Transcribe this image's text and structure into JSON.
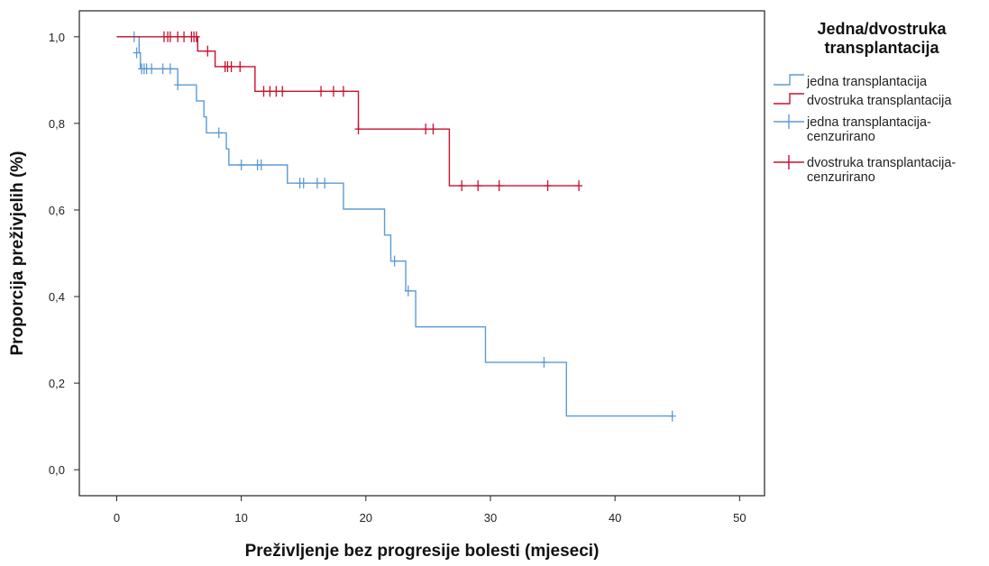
{
  "chart_data": {
    "type": "line",
    "subtype": "kaplan-meier-step",
    "title": "",
    "xlabel": "Preživljenje bez progresije bolesti (mjeseci)",
    "ylabel": "Proporcija preživjelih (%)",
    "xlim": [
      -3,
      52
    ],
    "ylim": [
      -0.06,
      1.06
    ],
    "xticks": [
      0,
      10,
      20,
      30,
      40,
      50
    ],
    "xtick_labels": [
      "0",
      "10",
      "20",
      "30",
      "40",
      "50"
    ],
    "yticks": [
      0.0,
      0.2,
      0.4,
      0.6,
      0.8,
      1.0
    ],
    "ytick_labels": [
      "0,0",
      "0,2",
      "0,4",
      "0,6",
      "0,8",
      "1,0"
    ],
    "grid": false,
    "legend": {
      "title_lines": [
        "Jedna/dvostruka",
        "transplantacija"
      ],
      "placement": "right",
      "entries": [
        {
          "lines": [
            "jedna transplantacija"
          ],
          "kind": "step",
          "color": "#5B9BD5"
        },
        {
          "lines": [
            "dvostruka transplantacija"
          ],
          "kind": "step",
          "color": "#C8102E"
        },
        {
          "lines": [
            "jedna transplantacija-",
            "cenzurirano"
          ],
          "kind": "censor",
          "color": "#5B9BD5"
        },
        {
          "lines": [
            "dvostruka transplantacija-",
            "cenzurirano"
          ],
          "kind": "censor",
          "color": "#C8102E"
        }
      ]
    },
    "series": [
      {
        "name": "jedna transplantacija",
        "color": "#5B9BD5",
        "steps": [
          [
            0,
            1.0
          ],
          [
            1.8,
            0.963
          ],
          [
            1.9,
            0.926
          ],
          [
            4.9,
            0.889
          ],
          [
            6.4,
            0.852
          ],
          [
            7.0,
            0.815
          ],
          [
            7.2,
            0.778
          ],
          [
            8.8,
            0.741
          ],
          [
            9.0,
            0.704
          ],
          [
            13.7,
            0.662
          ],
          [
            18.2,
            0.602
          ],
          [
            21.5,
            0.542
          ],
          [
            22.0,
            0.482
          ],
          [
            23.2,
            0.413
          ],
          [
            24.0,
            0.33
          ],
          [
            29.6,
            0.248
          ],
          [
            36.1,
            0.124
          ],
          [
            44.6,
            0.124
          ]
        ],
        "censored": [
          [
            1.4,
            1.0
          ],
          [
            1.6,
            0.963
          ],
          [
            2.0,
            0.926
          ],
          [
            2.2,
            0.926
          ],
          [
            2.4,
            0.926
          ],
          [
            2.8,
            0.926
          ],
          [
            3.7,
            0.926
          ],
          [
            4.3,
            0.926
          ],
          [
            4.9,
            0.889
          ],
          [
            8.2,
            0.778
          ],
          [
            10.0,
            0.704
          ],
          [
            11.3,
            0.704
          ],
          [
            11.6,
            0.704
          ],
          [
            14.7,
            0.662
          ],
          [
            15.0,
            0.662
          ],
          [
            16.1,
            0.662
          ],
          [
            16.7,
            0.662
          ],
          [
            22.3,
            0.482
          ],
          [
            23.4,
            0.413
          ],
          [
            34.3,
            0.248
          ],
          [
            44.6,
            0.124
          ]
        ]
      },
      {
        "name": "dvostruka transplantacija",
        "color": "#C8102E",
        "steps": [
          [
            0,
            1.0
          ],
          [
            6.5,
            0.967
          ],
          [
            7.9,
            0.931
          ],
          [
            11.1,
            0.874
          ],
          [
            19.4,
            0.787
          ],
          [
            26.7,
            0.656
          ],
          [
            37.1,
            0.656
          ]
        ],
        "censored": [
          [
            3.8,
            1.0
          ],
          [
            4.1,
            1.0
          ],
          [
            4.3,
            1.0
          ],
          [
            4.9,
            1.0
          ],
          [
            5.4,
            1.0
          ],
          [
            6.0,
            1.0
          ],
          [
            6.2,
            1.0
          ],
          [
            6.4,
            1.0
          ],
          [
            7.3,
            0.967
          ],
          [
            8.7,
            0.931
          ],
          [
            8.9,
            0.931
          ],
          [
            9.2,
            0.931
          ],
          [
            9.9,
            0.931
          ],
          [
            11.8,
            0.874
          ],
          [
            12.3,
            0.874
          ],
          [
            12.8,
            0.874
          ],
          [
            13.3,
            0.874
          ],
          [
            16.4,
            0.874
          ],
          [
            17.4,
            0.874
          ],
          [
            18.2,
            0.874
          ],
          [
            19.4,
            0.787
          ],
          [
            24.8,
            0.787
          ],
          [
            25.4,
            0.787
          ],
          [
            27.7,
            0.656
          ],
          [
            29.0,
            0.656
          ],
          [
            30.7,
            0.656
          ],
          [
            34.6,
            0.656
          ],
          [
            37.1,
            0.656
          ]
        ]
      }
    ]
  }
}
